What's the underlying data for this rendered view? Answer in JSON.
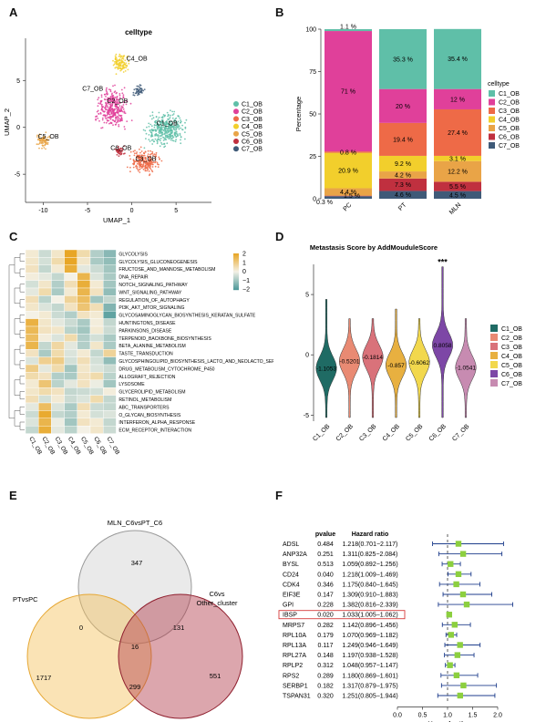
{
  "panels": {
    "A": "A",
    "B": "B",
    "C": "C",
    "D": "D",
    "E": "E",
    "F": "F"
  },
  "umap": {
    "title": "celltype",
    "xlabel": "UMAP_1",
    "ylabel": "UMAP_2",
    "xticks": [
      "-10",
      "-5",
      "0",
      "5"
    ],
    "yticks": [
      "5",
      "0",
      "-5"
    ],
    "cluster_labels": [
      "C1_OB",
      "C2_OB",
      "C3_OB",
      "C4_OB",
      "C5_OB",
      "C6_OB",
      "C7_OB"
    ],
    "legend": [
      "C1_OB",
      "C2_OB",
      "C3_OB",
      "C4_OB",
      "C5_OB",
      "C6_OB",
      "C7_OB"
    ],
    "colors": [
      "#5fbfa8",
      "#e0409a",
      "#ee6a47",
      "#f2cf2c",
      "#e9a447",
      "#c0303f",
      "#3f5a78"
    ]
  },
  "chart_data": [
    {
      "type": "bar",
      "stacked": true,
      "ylabel": "Percentage",
      "ylim": [
        0,
        100
      ],
      "yticks": [
        "0",
        "25",
        "50",
        "75",
        "100"
      ],
      "categories": [
        "PC",
        "PT",
        "MLN"
      ],
      "legend_title": "celltype",
      "series": [
        {
          "name": "C7_OB",
          "color": "#3f5a78",
          "values": [
            1.5,
            4.6,
            4.5
          ],
          "labels": [
            "1.5 %",
            "4.6 %",
            "4.5 %"
          ]
        },
        {
          "name": "C6_OB",
          "color": "#c0303f",
          "values": [
            0.3,
            7.3,
            5.5
          ],
          "labels": [
            "0.3 %",
            "7.3 %",
            "5.5 %"
          ]
        },
        {
          "name": "C5_OB",
          "color": "#e9a447",
          "values": [
            4.4,
            4.2,
            12.2
          ],
          "labels": [
            "4.4 %",
            "4.2 %",
            "12.2 %"
          ]
        },
        {
          "name": "C4_OB",
          "color": "#f2cf2c",
          "values": [
            20.9,
            9.2,
            3.1
          ],
          "labels": [
            "20.9 %",
            "9.2 %",
            "3.1 %"
          ]
        },
        {
          "name": "C3_OB",
          "color": "#ee6a47",
          "values": [
            0.8,
            19.4,
            27.4
          ],
          "labels": [
            "0.8 %",
            "19.4 %",
            "27.4 %"
          ]
        },
        {
          "name": "C2_OB",
          "color": "#e0409a",
          "values": [
            71,
            20,
            12
          ],
          "labels": [
            "71 %",
            "20 %",
            "12 %"
          ]
        },
        {
          "name": "C1_OB",
          "color": "#5fbfa8",
          "values": [
            1.1,
            35.3,
            35.4
          ],
          "labels": [
            "1.1 %",
            "35.3 %",
            "35.4 %"
          ]
        }
      ]
    },
    {
      "type": "heatmap",
      "columns": [
        "C1_OB",
        "C2_OB",
        "C3_OB",
        "C4_OB",
        "C5_OB",
        "C6_OB",
        "C7_OB"
      ],
      "rows": [
        "GLYCOLYSIS",
        "GLYCOLYSIS_GLUCONEOGENESIS",
        "FRUCTOSE_AND_MANNOSE_METABOLISM",
        "DNA_REPAIR",
        "NOTCH_SIGNALING_PATHWAY",
        "WNT_SIGNALING_PATHWAY",
        "REGULATION_OF_AUTOPHAGY",
        "PI3K_AKT_MTOR_SIGNALING",
        "GLYCOSAMINOGLYCAN_BIOSYNTHESIS_KERATAN_SULFATE",
        "HUNTINGTONS_DISEASE",
        "PARKINSONS_DISEASE",
        "TERPENOID_BACKBONE_BIOSYNTHESIS",
        "BETA_ALANINE_METABOLISM",
        "TASTE_TRANSDUCTION",
        "GLYCOSPHINGOLIPID_BIOSYNTHESIS_LACTO_AND_NEOLACTO_SERIES",
        "DRUG_METABOLISM_CYTOCHROME_P450",
        "ALLOGRAFT_REJECTION",
        "LYSOSOME",
        "GLYCEROLIPID_METABOLISM",
        "RETINOL_METABOLISM",
        "ABC_TRANSPORTERS",
        "O_GLYCAN_BIOSYNTHESIS",
        "INTERFERON_ALPHA_RESPONSE",
        "ECM_RECEPTOR_INTERACTION"
      ],
      "values": [
        [
          0.2,
          -0.5,
          0.3,
          2.0,
          0.6,
          -0.8,
          -1.3
        ],
        [
          0.3,
          -0.4,
          0.6,
          2.0,
          0.3,
          -0.9,
          -1.2
        ],
        [
          0.4,
          -0.6,
          0.2,
          1.8,
          -0.2,
          -0.5,
          -1.0
        ],
        [
          0.1,
          -0.2,
          -0.6,
          0.0,
          1.6,
          -0.3,
          -0.9
        ],
        [
          -0.4,
          0.3,
          -0.8,
          0.5,
          1.8,
          0.2,
          -1.0
        ],
        [
          -0.2,
          0.6,
          -0.9,
          0.2,
          1.6,
          0.4,
          -1.2
        ],
        [
          0.5,
          -0.7,
          0.0,
          0.8,
          1.4,
          -1.0,
          -0.6
        ],
        [
          0.3,
          -0.3,
          -0.6,
          0.4,
          1.2,
          0.5,
          -1.4
        ],
        [
          0.0,
          0.2,
          -0.5,
          -0.8,
          0.4,
          0.2,
          -1.8
        ],
        [
          1.7,
          0.3,
          -0.2,
          -0.5,
          -0.9,
          0.1,
          -0.6
        ],
        [
          1.5,
          0.4,
          0.3,
          -0.7,
          -1.0,
          0.2,
          -0.5
        ],
        [
          1.4,
          0.1,
          -0.3,
          0.6,
          -0.8,
          -0.4,
          -0.9
        ],
        [
          1.6,
          -0.6,
          0.7,
          -0.2,
          -0.8,
          0.3,
          -0.9
        ],
        [
          0.4,
          -0.9,
          0.6,
          -0.3,
          0.2,
          -0.6,
          0.8
        ],
        [
          -0.3,
          0.9,
          1.0,
          -0.4,
          0.5,
          -0.4,
          -1.2
        ],
        [
          1.0,
          -0.2,
          0.6,
          -1.0,
          0.3,
          -0.3,
          -0.5
        ],
        [
          0.6,
          0.4,
          -0.8,
          -0.9,
          0.4,
          0.6,
          -0.7
        ],
        [
          0.2,
          1.2,
          -0.7,
          -0.2,
          0.4,
          -0.1,
          -1.0
        ],
        [
          0.3,
          0.6,
          0.4,
          -0.6,
          -0.5,
          -0.4,
          0.1
        ],
        [
          0.5,
          -0.4,
          0.2,
          -0.5,
          -0.3,
          0.6,
          -0.6
        ],
        [
          -0.2,
          1.4,
          -0.3,
          -0.9,
          0.5,
          -0.5,
          -0.6
        ],
        [
          -0.5,
          1.9,
          -0.6,
          -0.8,
          0.2,
          -0.4,
          -0.3
        ],
        [
          -0.3,
          1.6,
          -0.1,
          -1.0,
          0.4,
          0.2,
          -0.6
        ],
        [
          -0.6,
          1.8,
          -0.2,
          -0.7,
          0.0,
          0.3,
          -0.5
        ]
      ],
      "scale": {
        "ticks": [
          "2",
          "1",
          "0",
          "−1",
          "−2"
        ],
        "low": "#4f9a9a",
        "mid": "#f4f1e6",
        "high": "#e8a626"
      }
    },
    {
      "type": "violin",
      "title": "Metastasis Score by AddMouduleScore",
      "categories": [
        "C1_OB",
        "C2_OB",
        "C3_OB",
        "C4_OB",
        "C5_OB",
        "C6_OB",
        "C7_OB"
      ],
      "medians": [
        -1.1053,
        -0.5201,
        -0.1814,
        -0.857,
        -0.6062,
        0.8058,
        -1.0541
      ],
      "median_labels": [
        "-1.1053",
        "-0.5201",
        "-0.1814",
        "-0.857",
        "-0.6062",
        "0.8058",
        "-1.0541"
      ],
      "yticks": [
        "5",
        "0",
        "-5"
      ],
      "ylim": [
        -5.5,
        7.5
      ],
      "significance": {
        "category": "C6_OB",
        "label": "***"
      },
      "colors": [
        "#1f6b64",
        "#e98a73",
        "#d9727a",
        "#e8b040",
        "#f2d84d",
        "#7d47a6",
        "#c78bb1"
      ]
    },
    {
      "type": "venn",
      "sets": [
        "MLN_C6vsPT_C6",
        "PTvsPC",
        "C6vs\nOther_cluster"
      ],
      "set_labels": {
        "top": "MLN_C6vsPT_C6",
        "left": "PTvsPC",
        "right_line1": "C6vs",
        "right_line2": "Other_cluster"
      },
      "regions": {
        "only_top": "347",
        "only_left": "1717",
        "only_right": "551",
        "top_left": "0",
        "top_right": "131",
        "left_right": "299",
        "all": "16"
      }
    },
    {
      "type": "forest",
      "headers": {
        "pvalue": "pvalue",
        "hr": "Hazard ratio"
      },
      "xlabel": "Hazard ratio",
      "xticks": [
        "0.0",
        "0.5",
        "1.0",
        "1.5",
        "2.0"
      ],
      "xlim": [
        0,
        2
      ],
      "reference": 1.0,
      "highlight": "IBSP",
      "rows": [
        {
          "gene": "ADSL",
          "pvalue": "0.484",
          "hr_text": "1.218(0.701−2.117)",
          "hr": 1.218,
          "lo": 0.701,
          "hi": 2.117
        },
        {
          "gene": "ANP32A",
          "pvalue": "0.251",
          "hr_text": "1.311(0.825−2.084)",
          "hr": 1.311,
          "lo": 0.825,
          "hi": 2.084
        },
        {
          "gene": "BYSL",
          "pvalue": "0.513",
          "hr_text": "1.059(0.892−1.256)",
          "hr": 1.059,
          "lo": 0.892,
          "hi": 1.256
        },
        {
          "gene": "CD24",
          "pvalue": "0.040",
          "hr_text": "1.218(1.009−1.469)",
          "hr": 1.218,
          "lo": 1.009,
          "hi": 1.469
        },
        {
          "gene": "CDK4",
          "pvalue": "0.346",
          "hr_text": "1.175(0.840−1.645)",
          "hr": 1.175,
          "lo": 0.84,
          "hi": 1.645
        },
        {
          "gene": "EIF3E",
          "pvalue": "0.147",
          "hr_text": "1.309(0.910−1.883)",
          "hr": 1.309,
          "lo": 0.91,
          "hi": 1.883
        },
        {
          "gene": "GPI",
          "pvalue": "0.228",
          "hr_text": "1.382(0.816−2.339)",
          "hr": 1.382,
          "lo": 0.816,
          "hi": 2.339
        },
        {
          "gene": "IBSP",
          "pvalue": "0.020",
          "hr_text": "1.033(1.005−1.062)",
          "hr": 1.033,
          "lo": 1.005,
          "hi": 1.062
        },
        {
          "gene": "MRPS7",
          "pvalue": "0.282",
          "hr_text": "1.142(0.896−1.456)",
          "hr": 1.142,
          "lo": 0.896,
          "hi": 1.456
        },
        {
          "gene": "RPL10A",
          "pvalue": "0.179",
          "hr_text": "1.070(0.969−1.182)",
          "hr": 1.07,
          "lo": 0.969,
          "hi": 1.182
        },
        {
          "gene": "RPL13A",
          "pvalue": "0.117",
          "hr_text": "1.249(0.946−1.649)",
          "hr": 1.249,
          "lo": 0.946,
          "hi": 1.649
        },
        {
          "gene": "RPL27A",
          "pvalue": "0.148",
          "hr_text": "1.197(0.938−1.528)",
          "hr": 1.197,
          "lo": 0.938,
          "hi": 1.528
        },
        {
          "gene": "RPLP2",
          "pvalue": "0.312",
          "hr_text": "1.048(0.957−1.147)",
          "hr": 1.048,
          "lo": 0.957,
          "hi": 1.147
        },
        {
          "gene": "RPS2",
          "pvalue": "0.289",
          "hr_text": "1.180(0.869−1.601)",
          "hr": 1.18,
          "lo": 0.869,
          "hi": 1.601
        },
        {
          "gene": "SERBP1",
          "pvalue": "0.182",
          "hr_text": "1.317(0.879−1.975)",
          "hr": 1.317,
          "lo": 0.879,
          "hi": 1.975
        },
        {
          "gene": "TSPAN31",
          "pvalue": "0.320",
          "hr_text": "1.251(0.805−1.944)",
          "hr": 1.251,
          "lo": 0.805,
          "hi": 1.944
        }
      ]
    }
  ]
}
